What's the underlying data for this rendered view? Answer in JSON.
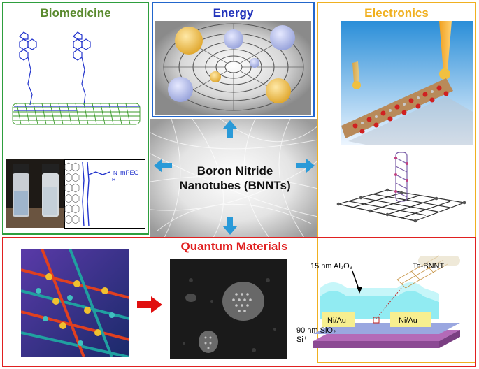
{
  "panels": {
    "biomedicine": {
      "title": "Biomedicine",
      "color": "#5a8a2e",
      "border": "#2e9e3e"
    },
    "energy": {
      "title": "Energy",
      "color": "#2233bb",
      "border": "#2266cc"
    },
    "electronics": {
      "title": "Electronics",
      "color": "#f0b020",
      "border": "#f0b020"
    },
    "quantum": {
      "title": "Quantum Materials",
      "color": "#e02020",
      "border": "#e02020"
    }
  },
  "center": {
    "line1": "Boron Nitride",
    "line2": "Nanotubes (BNNTs)"
  },
  "chem_labels": {
    "mpeg": "mPEG",
    "h": "H"
  },
  "device": {
    "oxide_label": "15 nm Al₂O₃",
    "nanotube_label": "Te-BNNT",
    "contact_left": "Ni/Au",
    "contact_right": "Ni/Au",
    "substrate_oxide": "90 nm SiO₂",
    "substrate": "Si⁺"
  },
  "colors": {
    "arrow_blue": "#2a9ad8",
    "arrow_red": "#e01010"
  }
}
